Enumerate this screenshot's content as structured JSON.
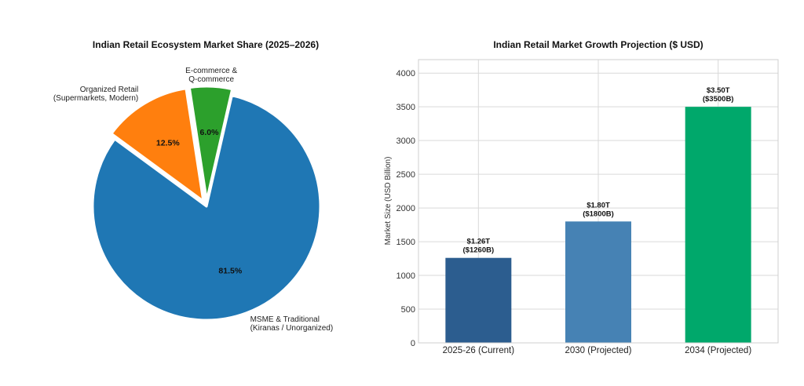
{
  "chart_data": [
    {
      "type": "pie",
      "title": "Indian Retail Ecosystem Market Share (2025–2026)",
      "slices": [
        {
          "label_lines": [
            "MSME & Traditional",
            "(Kiranas / Unorganized)"
          ],
          "value": 81.5,
          "pct_label": "81.5%",
          "color": "#1f77b4",
          "explode": 0
        },
        {
          "label_lines": [
            "E-commerce &",
            "Q-commerce"
          ],
          "value": 6.0,
          "pct_label": "6.0%",
          "color": "#2ca02c",
          "explode": 1
        },
        {
          "label_lines": [
            "Organized Retail",
            "(Supermarkets, Modern)"
          ],
          "value": 12.5,
          "pct_label": "12.5%",
          "color": "#ff7f0e",
          "explode": 1
        }
      ],
      "start_angle_deg": 143.7
    },
    {
      "type": "bar",
      "title": "Indian Retail Market Growth Projection ($ USD)",
      "ylabel": "Market Size (USD Billion)",
      "categories": [
        "2025-26 (Current)",
        "2030 (Projected)",
        "2034 (Projected)"
      ],
      "values": [
        1260,
        1800,
        3500
      ],
      "bar_labels": [
        [
          "$1.26T",
          "($1260B)"
        ],
        [
          "$1.80T",
          "($1800B)"
        ],
        [
          "$3.50T",
          "($3500B)"
        ]
      ],
      "colors": [
        "#2c5d8f",
        "#4682b4",
        "#00a86b"
      ],
      "ylim": [
        0,
        4200
      ],
      "yticks": [
        0,
        500,
        1000,
        1500,
        2000,
        2500,
        3000,
        3500,
        4000
      ],
      "grid": true
    }
  ]
}
